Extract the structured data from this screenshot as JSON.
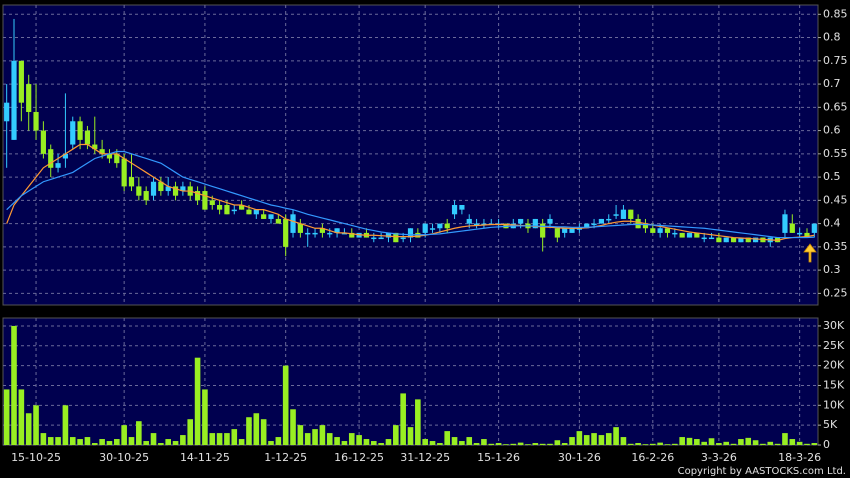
{
  "footer": "Copyright by AASTOCKS.com Ltd.",
  "chart_data": [
    {
      "type": "candlestick",
      "grid": true,
      "up_color": "#33ccff",
      "down_color": "#99ee22",
      "ylim": [
        0.225,
        0.87
      ],
      "yticks": [
        0.25,
        0.3,
        0.35,
        0.4,
        0.45,
        0.5,
        0.55,
        0.6,
        0.65,
        0.7,
        0.75,
        0.8,
        0.85
      ],
      "open": [
        0.62,
        0.58,
        0.75,
        0.7,
        0.64,
        0.6,
        0.56,
        0.52,
        0.54,
        0.57,
        0.62,
        0.6,
        0.57,
        0.56,
        0.55,
        0.55,
        0.54,
        0.5,
        0.48,
        0.47,
        0.46,
        0.49,
        0.47,
        0.48,
        0.47,
        0.48,
        0.47,
        0.47,
        0.45,
        0.44,
        0.44,
        0.43,
        0.44,
        0.43,
        0.42,
        0.42,
        0.41,
        0.41,
        0.41,
        0.38,
        0.4,
        0.38,
        0.38,
        0.39,
        0.38,
        0.38,
        0.38,
        0.38,
        0.37,
        0.38,
        0.37,
        0.37,
        0.37,
        0.38,
        0.37,
        0.37,
        0.38,
        0.38,
        0.39,
        0.39,
        0.4,
        0.42,
        0.43,
        0.4,
        0.4,
        0.4,
        0.4,
        0.4,
        0.4,
        0.39,
        0.4,
        0.4,
        0.39,
        0.4,
        0.4,
        0.39,
        0.38,
        0.38,
        0.39,
        0.39,
        0.4,
        0.4,
        0.41,
        0.42,
        0.41,
        0.43,
        0.41,
        0.4,
        0.39,
        0.38,
        0.39,
        0.38,
        0.38,
        0.37,
        0.38,
        0.37,
        0.37,
        0.37,
        0.36,
        0.37,
        0.36,
        0.37,
        0.36,
        0.37,
        0.36,
        0.37,
        0.38,
        0.4,
        0.38,
        0.38,
        0.38
      ],
      "high": [
        0.7,
        0.84,
        0.75,
        0.72,
        0.7,
        0.62,
        0.57,
        0.55,
        0.68,
        0.63,
        0.63,
        0.61,
        0.63,
        0.58,
        0.56,
        0.56,
        0.55,
        0.55,
        0.5,
        0.48,
        0.5,
        0.5,
        0.5,
        0.49,
        0.49,
        0.49,
        0.48,
        0.48,
        0.46,
        0.45,
        0.45,
        0.44,
        0.45,
        0.44,
        0.43,
        0.43,
        0.42,
        0.42,
        0.42,
        0.43,
        0.41,
        0.39,
        0.39,
        0.4,
        0.39,
        0.39,
        0.39,
        0.39,
        0.38,
        0.39,
        0.38,
        0.38,
        0.38,
        0.38,
        0.38,
        0.39,
        0.39,
        0.4,
        0.4,
        0.4,
        0.41,
        0.45,
        0.44,
        0.42,
        0.41,
        0.41,
        0.41,
        0.41,
        0.4,
        0.41,
        0.41,
        0.41,
        0.41,
        0.41,
        0.42,
        0.39,
        0.39,
        0.39,
        0.4,
        0.4,
        0.41,
        0.41,
        0.42,
        0.44,
        0.44,
        0.43,
        0.42,
        0.41,
        0.4,
        0.4,
        0.39,
        0.39,
        0.38,
        0.38,
        0.38,
        0.38,
        0.38,
        0.38,
        0.37,
        0.37,
        0.37,
        0.37,
        0.37,
        0.37,
        0.37,
        0.37,
        0.43,
        0.42,
        0.39,
        0.39,
        0.4
      ],
      "low": [
        0.52,
        0.58,
        0.62,
        0.6,
        0.58,
        0.54,
        0.5,
        0.51,
        0.52,
        0.56,
        0.56,
        0.56,
        0.55,
        0.54,
        0.53,
        0.52,
        0.47,
        0.47,
        0.45,
        0.44,
        0.45,
        0.46,
        0.46,
        0.45,
        0.46,
        0.45,
        0.44,
        0.43,
        0.43,
        0.42,
        0.42,
        0.42,
        0.43,
        0.42,
        0.41,
        0.41,
        0.4,
        0.4,
        0.33,
        0.37,
        0.37,
        0.35,
        0.37,
        0.37,
        0.37,
        0.37,
        0.38,
        0.37,
        0.37,
        0.37,
        0.36,
        0.37,
        0.36,
        0.36,
        0.36,
        0.36,
        0.37,
        0.37,
        0.38,
        0.38,
        0.38,
        0.41,
        0.42,
        0.39,
        0.39,
        0.39,
        0.4,
        0.39,
        0.39,
        0.39,
        0.39,
        0.38,
        0.39,
        0.34,
        0.39,
        0.36,
        0.37,
        0.38,
        0.38,
        0.39,
        0.39,
        0.4,
        0.4,
        0.41,
        0.41,
        0.4,
        0.39,
        0.38,
        0.38,
        0.37,
        0.37,
        0.37,
        0.37,
        0.37,
        0.37,
        0.36,
        0.37,
        0.36,
        0.36,
        0.36,
        0.36,
        0.36,
        0.36,
        0.36,
        0.35,
        0.36,
        0.37,
        0.38,
        0.37,
        0.37,
        0.37
      ],
      "close": [
        0.66,
        0.75,
        0.66,
        0.64,
        0.6,
        0.55,
        0.52,
        0.53,
        0.55,
        0.62,
        0.58,
        0.57,
        0.56,
        0.55,
        0.54,
        0.53,
        0.48,
        0.48,
        0.46,
        0.45,
        0.49,
        0.47,
        0.48,
        0.46,
        0.48,
        0.46,
        0.45,
        0.43,
        0.44,
        0.43,
        0.42,
        0.43,
        0.43,
        0.42,
        0.43,
        0.41,
        0.42,
        0.4,
        0.35,
        0.42,
        0.38,
        0.38,
        0.38,
        0.38,
        0.38,
        0.39,
        0.38,
        0.37,
        0.38,
        0.37,
        0.37,
        0.37,
        0.38,
        0.36,
        0.37,
        0.39,
        0.37,
        0.4,
        0.39,
        0.4,
        0.39,
        0.44,
        0.44,
        0.41,
        0.4,
        0.4,
        0.4,
        0.4,
        0.39,
        0.4,
        0.41,
        0.39,
        0.41,
        0.37,
        0.41,
        0.37,
        0.39,
        0.39,
        0.39,
        0.4,
        0.4,
        0.41,
        0.41,
        0.42,
        0.43,
        0.41,
        0.39,
        0.39,
        0.38,
        0.39,
        0.38,
        0.38,
        0.37,
        0.38,
        0.37,
        0.37,
        0.37,
        0.36,
        0.37,
        0.36,
        0.37,
        0.36,
        0.37,
        0.36,
        0.37,
        0.36,
        0.42,
        0.38,
        0.38,
        0.37,
        0.4
      ],
      "series": [
        {
          "color": "#ff9933",
          "values": [
            0.4,
            0.44,
            0.46,
            0.48,
            0.5,
            0.52,
            0.53,
            0.54,
            0.55,
            0.56,
            0.57,
            0.57,
            0.56,
            0.55,
            0.55,
            0.55,
            0.54,
            0.53,
            0.52,
            0.51,
            0.5,
            0.49,
            0.48,
            0.475,
            0.47,
            0.47,
            0.465,
            0.46,
            0.455,
            0.45,
            0.445,
            0.44,
            0.44,
            0.435,
            0.43,
            0.43,
            0.425,
            0.42,
            0.41,
            0.405,
            0.4,
            0.395,
            0.39,
            0.39,
            0.385,
            0.38,
            0.38,
            0.378,
            0.376,
            0.375,
            0.375,
            0.374,
            0.373,
            0.372,
            0.372,
            0.372,
            0.373,
            0.375,
            0.378,
            0.382,
            0.386,
            0.39,
            0.393,
            0.395,
            0.396,
            0.397,
            0.398,
            0.398,
            0.398,
            0.397,
            0.396,
            0.395,
            0.394,
            0.393,
            0.392,
            0.391,
            0.39,
            0.39,
            0.39,
            0.391,
            0.393,
            0.396,
            0.4,
            0.403,
            0.405,
            0.405,
            0.403,
            0.4,
            0.397,
            0.394,
            0.391,
            0.388,
            0.385,
            0.382,
            0.38,
            0.378,
            0.376,
            0.374,
            0.372,
            0.37,
            0.369,
            0.368,
            0.367,
            0.366,
            0.365,
            0.364,
            0.368,
            0.37,
            0.371,
            0.372,
            0.375
          ]
        },
        {
          "color": "#3399ff",
          "values": [
            0.43,
            0.445,
            0.46,
            0.47,
            0.48,
            0.49,
            0.495,
            0.5,
            0.505,
            0.51,
            0.52,
            0.53,
            0.54,
            0.545,
            0.55,
            0.555,
            0.555,
            0.55,
            0.545,
            0.54,
            0.535,
            0.53,
            0.52,
            0.51,
            0.5,
            0.495,
            0.49,
            0.485,
            0.48,
            0.475,
            0.47,
            0.465,
            0.46,
            0.455,
            0.45,
            0.445,
            0.44,
            0.437,
            0.433,
            0.43,
            0.425,
            0.42,
            0.416,
            0.412,
            0.408,
            0.404,
            0.4,
            0.396,
            0.392,
            0.388,
            0.385,
            0.382,
            0.38,
            0.378,
            0.377,
            0.376,
            0.376,
            0.376,
            0.377,
            0.378,
            0.38,
            0.382,
            0.384,
            0.386,
            0.388,
            0.39,
            0.392,
            0.393,
            0.394,
            0.395,
            0.395,
            0.395,
            0.395,
            0.394,
            0.394,
            0.393,
            0.393,
            0.392,
            0.392,
            0.392,
            0.393,
            0.394,
            0.395,
            0.396,
            0.397,
            0.398,
            0.398,
            0.398,
            0.397,
            0.396,
            0.395,
            0.394,
            0.393,
            0.392,
            0.391,
            0.39,
            0.388,
            0.386,
            0.384,
            0.382,
            0.38,
            0.378,
            0.376,
            0.374,
            0.372,
            0.37,
            0.37,
            0.37,
            0.37,
            0.37,
            0.371
          ]
        }
      ]
    },
    {
      "type": "bar",
      "grid": true,
      "color": "#99ee22",
      "ylim": [
        0,
        32000
      ],
      "yticks": [
        0,
        {
          "value": 5000,
          "label": "5K"
        },
        {
          "value": 10000,
          "label": "10K"
        },
        {
          "value": 15000,
          "label": "15K"
        },
        {
          "value": 20000,
          "label": "20K"
        },
        {
          "value": 25000,
          "label": "25K"
        },
        {
          "value": 30000,
          "label": "30K"
        }
      ],
      "categories": [
        null,
        null,
        null,
        null,
        "15-10-25",
        null,
        null,
        null,
        null,
        null,
        null,
        null,
        null,
        null,
        null,
        null,
        "30-10-25",
        null,
        null,
        null,
        null,
        null,
        null,
        null,
        null,
        null,
        null,
        "14-11-25",
        null,
        null,
        null,
        null,
        null,
        null,
        null,
        null,
        null,
        null,
        "1-12-25",
        null,
        null,
        null,
        null,
        null,
        null,
        null,
        null,
        null,
        "16-12-25",
        null,
        null,
        null,
        null,
        null,
        null,
        null,
        null,
        "31-12-25",
        null,
        null,
        null,
        null,
        null,
        null,
        null,
        null,
        null,
        "15-1-26",
        null,
        null,
        null,
        null,
        null,
        null,
        null,
        null,
        null,
        null,
        "30-1-26",
        null,
        null,
        null,
        null,
        null,
        null,
        null,
        null,
        null,
        "16-2-26",
        null,
        null,
        null,
        null,
        null,
        null,
        null,
        null,
        "3-3-26",
        null,
        null,
        null,
        null,
        null,
        null,
        null,
        null,
        null,
        null,
        "18-3-26",
        null,
        null
      ],
      "values": [
        14000,
        30000,
        14000,
        8000,
        10000,
        3000,
        2000,
        2000,
        10000,
        2000,
        1500,
        2000,
        500,
        1500,
        1000,
        1500,
        5000,
        2000,
        6000,
        1000,
        3000,
        500,
        1500,
        1000,
        2500,
        6500,
        22000,
        14000,
        3000,
        3000,
        3000,
        4000,
        1500,
        7000,
        8000,
        6500,
        1000,
        2000,
        20000,
        9000,
        5000,
        3000,
        4000,
        5000,
        3000,
        2000,
        1000,
        3000,
        2500,
        1500,
        1000,
        500,
        1500,
        5000,
        13000,
        4500,
        11500,
        1500,
        1000,
        500,
        3500,
        2000,
        1000,
        2000,
        500,
        1500,
        300,
        500,
        200,
        300,
        600,
        200,
        500,
        300,
        300,
        1200,
        500,
        2000,
        3500,
        2500,
        3000,
        2500,
        3000,
        4500,
        2000,
        300,
        500,
        200,
        300,
        600,
        200,
        300,
        2000,
        1800,
        1500,
        800,
        1700,
        500,
        800,
        300,
        1500,
        1800,
        1200,
        300,
        800,
        300,
        3000,
        1500,
        800,
        300,
        500
      ]
    }
  ]
}
